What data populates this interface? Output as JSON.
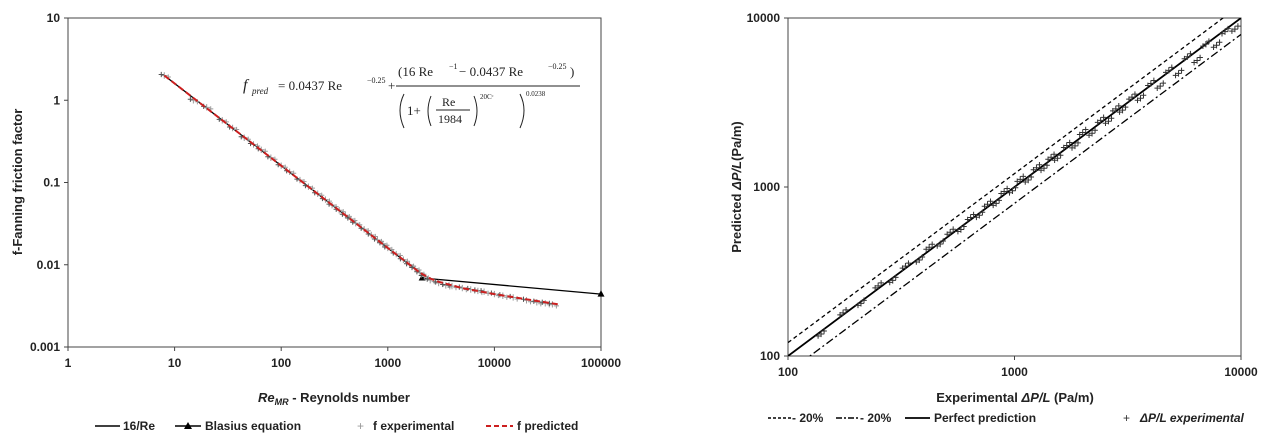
{
  "chart_data": [
    {
      "type": "scatter",
      "xscale": "log",
      "yscale": "log",
      "xlim": [
        1,
        100000
      ],
      "ylim": [
        0.001,
        10
      ],
      "x_ticks": [
        "1",
        "10",
        "100",
        "1000",
        "10000",
        "100000"
      ],
      "y_ticks": [
        "0.001",
        "0.01",
        "0.1",
        "1",
        "10"
      ],
      "xlabel_main": "Re",
      "xlabel_sub": "MR",
      "xlabel_rest": " - Reynolds number",
      "ylabel": "f-Fanning friction factor",
      "grid": false,
      "legend_position": "bottom",
      "equation": {
        "lhs": "f",
        "lhs_sub": "pred",
        "term1": "= 0.0437  Re",
        "exp1": "−0.25",
        "plus": "+",
        "num": "(16 Re",
        "num_exp1": "−1",
        "num_mid": " − 0.0437  Re",
        "num_exp2": "−0.25",
        "num_end": ")",
        "den_one": "1+",
        "den_re": "Re",
        "den_1984": "1984",
        "den_exp_inner": "20Cᶜ",
        "den_exp_outer": "0.0238"
      },
      "series": [
        {
          "name": "16/Re",
          "kind": "line",
          "color": "#000000",
          "x": [
            8,
            2100
          ],
          "y": [
            2.0,
            0.00762
          ]
        },
        {
          "name": "Blasius equation",
          "kind": "line-marker",
          "color": "#000000",
          "x": [
            2100,
            100000
          ],
          "y": [
            0.0069,
            0.0044
          ]
        },
        {
          "name": "f experimental",
          "kind": "marker",
          "color": "#9a9a9a",
          "x": [
            8,
            15,
            20,
            28,
            35,
            45,
            55,
            65,
            80,
            100,
            120,
            150,
            180,
            220,
            260,
            300,
            350,
            400,
            450,
            500,
            600,
            700,
            800,
            900,
            1000,
            1200,
            1400,
            1600,
            1800,
            2000,
            2200,
            2500,
            3000,
            3500,
            4000,
            5000,
            6000,
            7000,
            8000,
            10000,
            12000,
            15000,
            20000,
            25000,
            30000,
            35000
          ],
          "y": [
            2.0,
            1.0,
            0.82,
            0.57,
            0.46,
            0.35,
            0.29,
            0.25,
            0.2,
            0.16,
            0.135,
            0.107,
            0.089,
            0.073,
            0.062,
            0.053,
            0.046,
            0.04,
            0.036,
            0.032,
            0.027,
            0.023,
            0.02,
            0.018,
            0.016,
            0.0135,
            0.0115,
            0.01,
            0.009,
            0.008,
            0.0072,
            0.0065,
            0.006,
            0.0056,
            0.0055,
            0.0052,
            0.005,
            0.0048,
            0.0047,
            0.0044,
            0.0042,
            0.004,
            0.0037,
            0.0035,
            0.0034,
            0.0033
          ]
        },
        {
          "name": "f predicted",
          "kind": "dashed-line",
          "color": "#cc1f1f",
          "x": [
            8,
            100,
            500,
            1000,
            1500,
            2000,
            2500,
            3000,
            5000,
            10000,
            20000,
            40000
          ],
          "y": [
            2.0,
            0.16,
            0.032,
            0.016,
            0.0107,
            0.008,
            0.0068,
            0.0062,
            0.0052,
            0.0044,
            0.0038,
            0.0033
          ]
        }
      ],
      "legend": [
        "16/Re",
        "Blasius equation",
        "f experimental",
        "f predicted"
      ]
    },
    {
      "type": "scatter",
      "xscale": "log",
      "yscale": "log",
      "xlim": [
        100,
        10000
      ],
      "ylim": [
        100,
        10000
      ],
      "x_ticks": [
        "100",
        "1000",
        "10000"
      ],
      "y_ticks": [
        "100",
        "1000",
        "10000"
      ],
      "xlabel_pre": "Experimental ",
      "xlabel_ital": "ΔP/L",
      "xlabel_post": " (Pa/m)",
      "ylabel_pre": "Predicted ",
      "ylabel_ital": "ΔP/L",
      "ylabel_post": "(Pa/m)",
      "grid": false,
      "legend_position": "bottom",
      "series": [
        {
          "name": "- 20%",
          "kind": "dashed-line",
          "factor": 1.2,
          "color": "#000000"
        },
        {
          "name": "- 20%",
          "kind": "dashdot-line",
          "factor": 0.8,
          "color": "#000000"
        },
        {
          "name": "Perfect prediction",
          "kind": "line",
          "factor": 1.0,
          "color": "#000000"
        },
        {
          "name": "ΔP/L experimental",
          "kind": "marker",
          "color": "#333333",
          "x": [
            140,
            175,
            210,
            250,
            290,
            330,
            380,
            420,
            470,
            520,
            580,
            640,
            700,
            760,
            830,
            900,
            980,
            1060,
            1150,
            1250,
            1350,
            1450,
            1550,
            1700,
            1850,
            2000,
            2200,
            2400,
            2600,
            2800,
            3000,
            3300,
            3600,
            4000,
            4400,
            4800,
            5300,
            5800,
            6400,
            7000,
            7800,
            8500,
            9400
          ],
          "y": [
            135,
            180,
            205,
            260,
            280,
            340,
            370,
            440,
            460,
            540,
            560,
            660,
            680,
            790,
            800,
            940,
            950,
            1110,
            1100,
            1300,
            1290,
            1500,
            1480,
            1760,
            1750,
            2100,
            2080,
            2480,
            2450,
            2900,
            2850,
            3400,
            3350,
            4100,
            3950,
            4900,
            4700,
            5900,
            5600,
            7000,
            6900,
            8300,
            8600
          ]
        }
      ],
      "legend": [
        "- 20%",
        "- 20%",
        "Perfect prediction",
        "ΔP/L experimental"
      ]
    }
  ]
}
